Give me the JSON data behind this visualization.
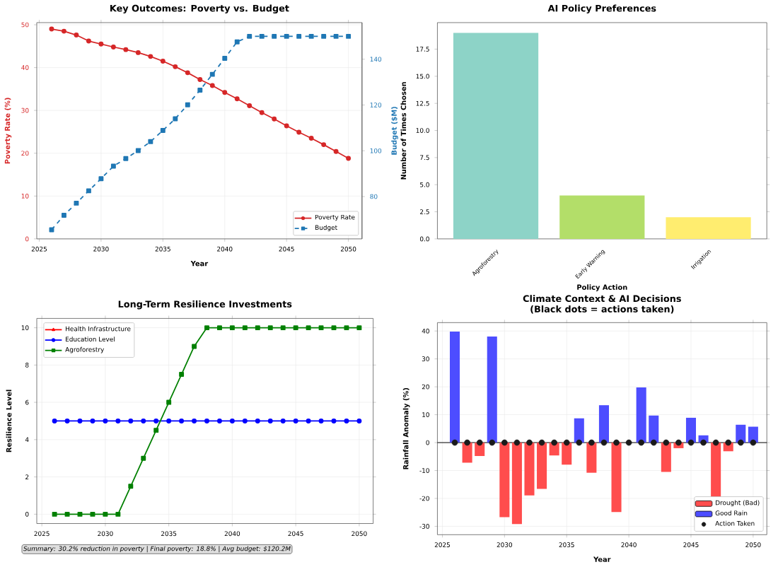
{
  "chart_data": [
    {
      "type": "line",
      "title": "Key Outcomes: Poverty vs. Budget",
      "xlabel": "Year",
      "ylabel": "Poverty Rate (%)",
      "y2label": "Budget ($M)",
      "x": [
        2026,
        2027,
        2028,
        2029,
        2030,
        2031,
        2032,
        2033,
        2034,
        2035,
        2036,
        2037,
        2038,
        2039,
        2040,
        2041,
        2042,
        2043,
        2044,
        2045,
        2046,
        2047,
        2048,
        2049,
        2050
      ],
      "xlim": [
        2024.8,
        2051.1
      ],
      "xticks": [
        2025,
        2030,
        2035,
        2040,
        2045,
        2050
      ],
      "ylim": [
        0,
        50.5
      ],
      "yticks": [
        0,
        10,
        20,
        30,
        40,
        50
      ],
      "y2lim": [
        61.5,
        156
      ],
      "y2ticks": [
        80,
        100,
        120,
        140
      ],
      "series": [
        {
          "name": "Poverty Rate",
          "color": "#d62728",
          "marker": "circle",
          "values": [
            49.0,
            48.5,
            47.6,
            46.2,
            45.5,
            44.8,
            44.2,
            43.5,
            42.6,
            41.5,
            40.2,
            38.8,
            37.2,
            35.8,
            34.2,
            32.7,
            31.1,
            29.5,
            28.0,
            26.4,
            24.9,
            23.5,
            22.0,
            20.4,
            18.8
          ]
        },
        {
          "name": "Budget",
          "color": "#1f77b4",
          "marker": "square",
          "line_style": "dashed",
          "axis": "y2",
          "values": [
            65.5,
            71.8,
            77.1,
            82.5,
            87.8,
            93.3,
            96.6,
            100.1,
            104,
            108.9,
            114,
            120.1,
            126.5,
            133.4,
            140.4,
            147.6,
            150,
            150,
            150,
            150,
            150,
            150,
            150,
            150,
            150
          ]
        }
      ],
      "grid": true,
      "legend": "bottom right"
    },
    {
      "type": "bar",
      "title": "AI Policy Preferences",
      "xlabel": "Policy Action",
      "ylabel": "Number of Times Chosen",
      "categories": [
        "Agroforestry",
        "Early Warning",
        "Irrigation"
      ],
      "values": [
        19,
        4,
        2
      ],
      "colors": [
        "#8dd3c7",
        "#b3de69",
        "#ffed6f"
      ],
      "ylim": [
        0,
        19.95
      ],
      "yticks": [
        {
          "value": 0,
          "label": "0.0"
        },
        {
          "value": 2.5,
          "label": "2.5"
        },
        {
          "value": 5,
          "label": "5.0"
        },
        {
          "value": 7.5,
          "label": "7.5"
        },
        {
          "value": 10,
          "label": "10.0"
        },
        {
          "value": 12.5,
          "label": "12.5"
        },
        {
          "value": 15,
          "label": "15.0"
        },
        {
          "value": 17.5,
          "label": "17.5"
        }
      ]
    },
    {
      "type": "line",
      "title": "Long-Term Resilience Investments",
      "ylabel": "Resilience Level",
      "x": [
        2026,
        2027,
        2028,
        2029,
        2030,
        2031,
        2032,
        2033,
        2034,
        2035,
        2036,
        2037,
        2038,
        2039,
        2040,
        2041,
        2042,
        2043,
        2044,
        2045,
        2046,
        2047,
        2048,
        2049,
        2050
      ],
      "xlim": [
        2024.6,
        2051.1
      ],
      "xticks": [
        2025,
        2030,
        2035,
        2040,
        2045,
        2050
      ],
      "ylim": [
        -0.5,
        10.5
      ],
      "yticks": [
        0,
        2,
        4,
        6,
        8,
        10
      ],
      "series": [
        {
          "name": "Health Infrastructure",
          "color": "#ff0000",
          "marker": "triangle",
          "values": [
            null,
            null,
            null,
            null,
            null,
            null,
            null,
            null,
            null,
            null,
            null,
            null,
            null,
            null,
            null,
            null,
            null,
            null,
            null,
            null,
            null,
            null,
            null,
            null,
            null
          ]
        },
        {
          "name": "Education Level",
          "color": "#0000ff",
          "marker": "circle",
          "values": [
            5,
            5,
            5,
            5,
            5,
            5,
            5,
            5,
            5,
            5,
            5,
            5,
            5,
            5,
            5,
            5,
            5,
            5,
            5,
            5,
            5,
            5,
            5,
            5,
            5
          ]
        },
        {
          "name": "Agroforestry",
          "color": "#008000",
          "marker": "square",
          "values": [
            0,
            0,
            0,
            0,
            0,
            0,
            1.5,
            3,
            4.5,
            6,
            7.5,
            9,
            10,
            10,
            10,
            10,
            10,
            10,
            10,
            10,
            10,
            10,
            10,
            10,
            10
          ]
        }
      ],
      "grid": true,
      "legend": "top left",
      "annotations": [
        "Summary: 30.2% reduction in poverty | Final poverty: 18.8% | Avg budget: $120.2M"
      ]
    },
    {
      "type": "bar",
      "title": "Climate Context & AI Decisions",
      "subtitle": "(Black dots = actions taken)",
      "xlabel": "Year",
      "ylabel": "Rainfall Anomaly (%)",
      "x": [
        2026,
        2027,
        2028,
        2029,
        2030,
        2031,
        2032,
        2033,
        2034,
        2035,
        2036,
        2037,
        2038,
        2039,
        2040,
        2041,
        2042,
        2043,
        2044,
        2045,
        2046,
        2047,
        2048,
        2049,
        2050
      ],
      "xlim": [
        2024.6,
        2051.1
      ],
      "xticks": [
        2025,
        2030,
        2035,
        2040,
        2045,
        2050
      ],
      "ylim": [
        -33,
        43
      ],
      "yticks": [
        -30,
        -20,
        -10,
        0,
        10,
        20,
        30,
        40
      ],
      "series": [
        {
          "name": "Drought (Bad)",
          "color": "#ff4d4d",
          "values": [
            null,
            -7.2,
            -4.8,
            null,
            -26.7,
            -29.2,
            -18.9,
            -16.6,
            -4.6,
            -7.9,
            null,
            -10.8,
            null,
            -24.9,
            null,
            null,
            null,
            -10.5,
            -2.0,
            null,
            null,
            -20.5,
            -3.1,
            null,
            null
          ]
        },
        {
          "name": "Good Rain",
          "color": "#4d4dff",
          "values": [
            39.8,
            null,
            null,
            38.0,
            null,
            null,
            null,
            null,
            null,
            null,
            8.7,
            null,
            13.4,
            null,
            null,
            19.8,
            9.7,
            null,
            null,
            8.9,
            2.6,
            null,
            null,
            6.4,
            5.7
          ]
        },
        {
          "name": "Action Taken",
          "type": "scatter",
          "color": "#1a1a1a",
          "values": [
            0,
            0,
            0,
            0,
            0,
            0,
            0,
            0,
            0,
            0,
            0,
            0,
            0,
            0,
            0,
            0,
            0,
            0,
            0,
            0,
            0,
            0,
            0,
            0,
            0
          ]
        }
      ],
      "ref_lines": [
        {
          "axis": "y",
          "value": 0,
          "color": "#000000"
        }
      ],
      "grid": true,
      "legend": "bottom right"
    }
  ]
}
